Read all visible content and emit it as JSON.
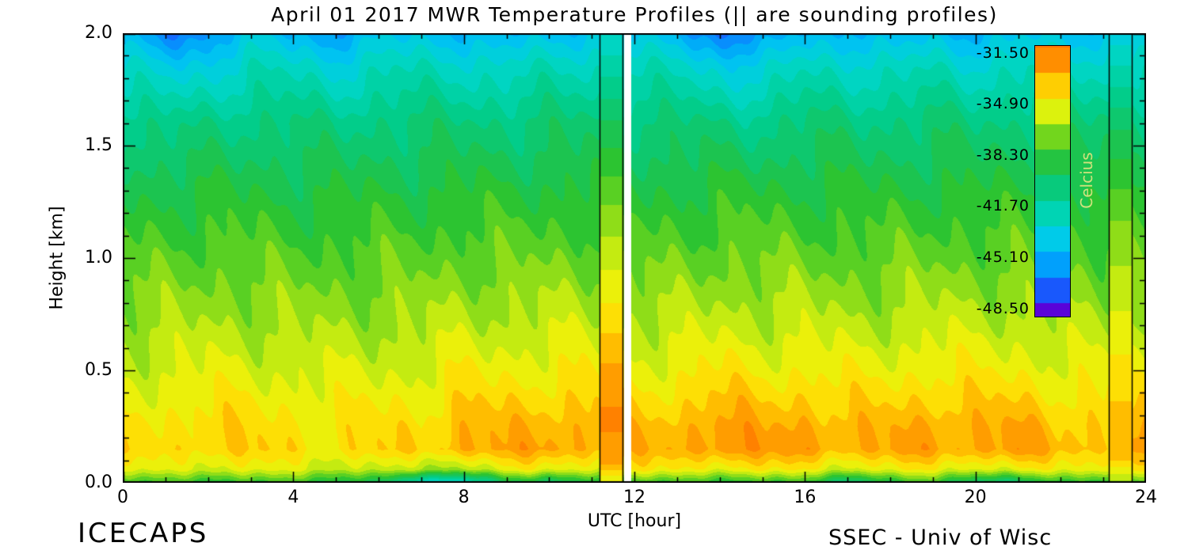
{
  "chart_data": {
    "type": "heatmap",
    "title": "April 01 2017 MWR Temperature Profiles (|| are sounding profiles)",
    "xlabel": "UTC [hour]",
    "ylabel": "Height [km]",
    "x_range": [
      0,
      24
    ],
    "y_range": [
      0,
      2
    ],
    "x_tick_values": [
      0,
      4,
      8,
      12,
      16,
      20,
      24
    ],
    "x_tick_labels": [
      "0",
      "4",
      "8",
      "12",
      "16",
      "20",
      "24"
    ],
    "x_minor_step": 1,
    "y_tick_values": [
      0,
      0.5,
      1.0,
      1.5,
      2.0
    ],
    "y_tick_labels": [
      "0.0",
      "0.5",
      "1.0",
      "1.5",
      "2.0"
    ],
    "y_minor_step": 0.1,
    "contour_step": 0.85,
    "colorbar": {
      "label": "Celcius",
      "tick_values": [
        -31.5,
        -34.9,
        -38.3,
        -41.7,
        -45.1,
        -48.5
      ],
      "tick_labels": [
        "-31.50",
        "-34.90",
        "-38.30",
        "-41.70",
        "-45.10",
        "-48.50"
      ],
      "top_value": -31.0,
      "bottom_value": -49.0,
      "block_step": 1.7
    },
    "colors": {
      "background": "#ffffff",
      "axis": "#000000",
      "text": "#000000",
      "colorbar_label": "#cfe27c"
    },
    "colormap_stops": [
      {
        "v": -49.0,
        "rgb": [
          96,
          0,
          214
        ]
      },
      {
        "v": -48.4,
        "rgb": [
          30,
          30,
          238
        ]
      },
      {
        "v": -47.0,
        "rgb": [
          24,
          100,
          255
        ]
      },
      {
        "v": -45.5,
        "rgb": [
          0,
          162,
          252
        ]
      },
      {
        "v": -44.0,
        "rgb": [
          0,
          202,
          238
        ]
      },
      {
        "v": -42.5,
        "rgb": [
          0,
          214,
          192
        ]
      },
      {
        "v": -41.0,
        "rgb": [
          0,
          206,
          142
        ]
      },
      {
        "v": -39.5,
        "rgb": [
          22,
          196,
          92
        ]
      },
      {
        "v": -38.3,
        "rgb": [
          44,
          196,
          48
        ]
      },
      {
        "v": -37.2,
        "rgb": [
          104,
          212,
          30
        ]
      },
      {
        "v": -36.2,
        "rgb": [
          172,
          228,
          20
        ]
      },
      {
        "v": -35.2,
        "rgb": [
          228,
          244,
          12
        ]
      },
      {
        "v": -34.3,
        "rgb": [
          252,
          232,
          6
        ]
      },
      {
        "v": -33.4,
        "rgb": [
          255,
          196,
          0
        ]
      },
      {
        "v": -32.2,
        "rgb": [
          255,
          150,
          0
        ]
      },
      {
        "v": -31.0,
        "rgb": [
          255,
          112,
          0
        ]
      }
    ],
    "grid": {
      "hours": [
        0,
        1,
        2,
        3,
        4,
        5,
        6,
        7,
        8,
        9,
        10,
        11,
        12,
        13,
        14,
        15,
        16,
        17,
        18,
        19,
        20,
        21,
        22,
        23,
        24
      ],
      "heights": [
        0,
        0.06,
        0.15,
        0.25,
        0.35,
        0.5,
        0.7,
        1.0,
        1.3,
        1.6,
        1.85,
        2.0
      ],
      "temps": [
        [
          -38.5,
          -38.5,
          -38.3,
          -38.4,
          -38.6,
          -38.8,
          -39.5,
          -43.5,
          -43.0,
          -39.5,
          -40.5,
          -38.8,
          -38.5,
          -38.6,
          -38.4,
          -38.5,
          -38.8,
          -40.5,
          -39.0,
          -38.6,
          -40.0,
          -40.5,
          -38.8,
          -38.5,
          -38.0
        ],
        [
          -35.5,
          -35.3,
          -35.0,
          -35.2,
          -35.4,
          -35.5,
          -35.8,
          -36.5,
          -36.0,
          -35.0,
          -35.2,
          -34.8,
          -34.6,
          -34.8,
          -34.5,
          -34.6,
          -34.8,
          -35.2,
          -35.0,
          -34.8,
          -35.0,
          -35.2,
          -34.9,
          -34.6,
          -34.2
        ],
        [
          -34.2,
          -34.0,
          -33.6,
          -33.8,
          -34.0,
          -34.1,
          -33.9,
          -33.8,
          -32.6,
          -32.9,
          -32.4,
          -32.8,
          -33.2,
          -32.8,
          -31.9,
          -32.5,
          -32.2,
          -32.9,
          -32.8,
          -32.3,
          -32.6,
          -32.4,
          -33.0,
          -33.4,
          -32.8
        ],
        [
          -34.4,
          -34.2,
          -33.9,
          -34.0,
          -34.2,
          -34.3,
          -34.1,
          -34.0,
          -33.0,
          -33.2,
          -32.8,
          -33.0,
          -33.5,
          -33.1,
          -32.3,
          -32.9,
          -32.6,
          -33.2,
          -33.1,
          -32.6,
          -32.9,
          -32.8,
          -33.3,
          -33.7,
          -33.2
        ],
        [
          -34.9,
          -34.7,
          -34.4,
          -34.5,
          -34.7,
          -34.8,
          -34.6,
          -34.5,
          -33.7,
          -33.9,
          -33.5,
          -33.7,
          -34.0,
          -33.8,
          -33.2,
          -33.6,
          -33.4,
          -33.9,
          -33.8,
          -33.4,
          -33.6,
          -33.6,
          -34.0,
          -34.3,
          -33.9
        ],
        [
          -35.6,
          -35.4,
          -35.2,
          -35.3,
          -35.4,
          -35.5,
          -35.4,
          -35.3,
          -34.7,
          -34.8,
          -34.6,
          -34.7,
          -34.9,
          -34.8,
          -34.4,
          -34.7,
          -34.5,
          -34.9,
          -34.8,
          -34.5,
          -34.7,
          -34.7,
          -35.0,
          -35.2,
          -34.9
        ],
        [
          -36.4,
          -36.3,
          -36.1,
          -36.2,
          -36.3,
          -36.4,
          -36.3,
          -36.2,
          -35.8,
          -35.9,
          -35.7,
          -35.8,
          -36.0,
          -35.9,
          -35.6,
          -35.8,
          -35.7,
          -36.0,
          -35.9,
          -35.7,
          -35.8,
          -35.8,
          -36.0,
          -36.2,
          -36.0
        ],
        [
          -37.6,
          -37.5,
          -37.4,
          -37.5,
          -37.6,
          -37.6,
          -37.5,
          -37.5,
          -37.2,
          -37.3,
          -37.2,
          -37.2,
          -37.4,
          -37.3,
          -37.1,
          -37.2,
          -37.2,
          -37.4,
          -37.3,
          -37.2,
          -37.3,
          -37.3,
          -37.4,
          -37.5,
          -37.4
        ],
        [
          -38.9,
          -38.9,
          -38.8,
          -38.8,
          -38.9,
          -38.9,
          -38.8,
          -38.8,
          -38.6,
          -38.7,
          -38.6,
          -38.6,
          -38.7,
          -38.7,
          -38.6,
          -38.6,
          -38.6,
          -38.7,
          -38.7,
          -38.6,
          -38.7,
          -38.7,
          -38.7,
          -38.8,
          -38.7
        ],
        [
          -40.6,
          -40.9,
          -40.7,
          -40.4,
          -40.4,
          -40.7,
          -40.4,
          -40.3,
          -40.3,
          -40.4,
          -40.2,
          -40.2,
          -40.3,
          -40.3,
          -40.6,
          -40.7,
          -40.3,
          -40.3,
          -40.4,
          -40.2,
          -40.4,
          -40.3,
          -40.3,
          -40.3,
          -40.2
        ],
        [
          -42.8,
          -43.8,
          -43.4,
          -42.4,
          -42.6,
          -43.2,
          -42.5,
          -42.3,
          -42.5,
          -42.8,
          -42.3,
          -42.2,
          -42.4,
          -42.5,
          -43.4,
          -43.6,
          -42.4,
          -42.5,
          -42.8,
          -42.3,
          -42.8,
          -42.4,
          -42.3,
          -42.4,
          -42.2
        ],
        [
          -44.8,
          -46.3,
          -45.6,
          -44.2,
          -44.6,
          -45.4,
          -44.4,
          -44.0,
          -44.5,
          -45.0,
          -44.2,
          -44.0,
          -44.3,
          -44.5,
          -46.6,
          -46.0,
          -44.3,
          -44.5,
          -45.0,
          -44.1,
          -44.8,
          -44.3,
          -44.0,
          -44.2,
          -43.8
        ]
      ]
    },
    "soundings": [
      {
        "start": 11.18,
        "end": 11.72,
        "heights": [
          0,
          0.1,
          0.3,
          0.5,
          0.8,
          1.2,
          1.6,
          2.0
        ],
        "temps": [
          -35.5,
          -32.2,
          -31.8,
          -32.6,
          -34.5,
          -36.8,
          -39.5,
          -43.0
        ]
      },
      {
        "start": 23.13,
        "end": 23.67,
        "heights": [
          0,
          0.1,
          0.3,
          0.5,
          0.8,
          1.2,
          1.6,
          2.0
        ],
        "temps": [
          -36.5,
          -33.6,
          -33.4,
          -34.2,
          -35.5,
          -37.2,
          -39.8,
          -43.5
        ]
      }
    ],
    "gaps": [
      {
        "start": 11.76,
        "end": 11.92
      }
    ],
    "footer_left": "ICECAPS",
    "footer_right": "SSEC - Univ of Wisc"
  }
}
